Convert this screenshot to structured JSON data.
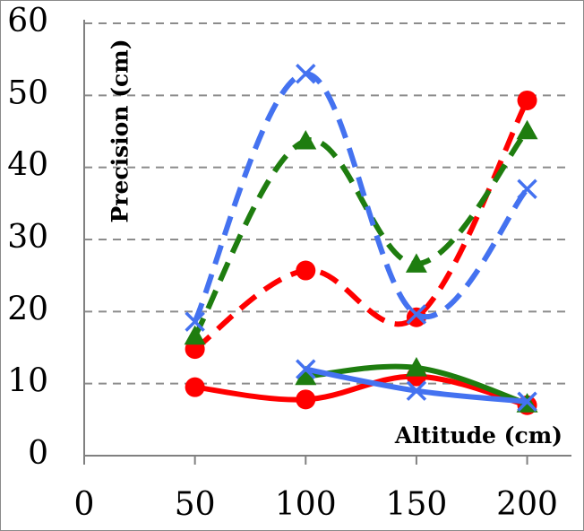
{
  "chart_data": {
    "type": "line",
    "xlabel": "Altitude (cm)",
    "ylabel": "Precision (cm)",
    "xlim": [
      0,
      220
    ],
    "ylim": [
      0,
      60
    ],
    "x_ticks": [
      "0",
      "50",
      "100",
      "150",
      "200"
    ],
    "y_ticks": [
      "0",
      "10",
      "20",
      "30",
      "40",
      "50",
      "60"
    ],
    "grid": "horizontal dashed",
    "x": [
      50,
      100,
      150,
      200
    ],
    "series": [
      {
        "color": "#ff0000",
        "dash": false,
        "marker": "circle",
        "values": [
          9.5,
          7.8,
          11.0,
          7.0
        ]
      },
      {
        "color": "#1e7d0f",
        "dash": false,
        "marker": "triangle",
        "x": [
          100,
          150,
          200
        ],
        "values": [
          11.0,
          12.2,
          7.2
        ]
      },
      {
        "color": "#4472f0",
        "dash": false,
        "marker": "x",
        "x": [
          100,
          150,
          200
        ],
        "values": [
          12.0,
          9.0,
          7.5
        ]
      },
      {
        "color": "#ff0000",
        "dash": true,
        "marker": "circle",
        "values": [
          14.8,
          25.7,
          19.2,
          49.3
        ]
      },
      {
        "color": "#1e7d0f",
        "dash": true,
        "marker": "triangle",
        "values": [
          16.6,
          43.7,
          26.6,
          45.1
        ]
      },
      {
        "color": "#4472f0",
        "dash": true,
        "marker": "x",
        "values": [
          18.6,
          53.0,
          19.6,
          37.0
        ]
      }
    ]
  }
}
